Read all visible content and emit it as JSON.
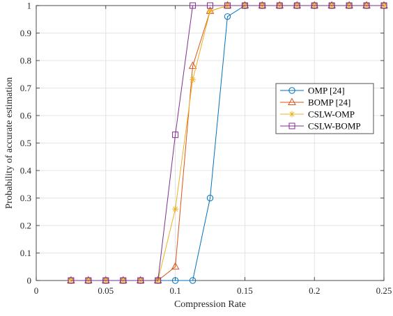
{
  "chart_data": {
    "type": "line",
    "title": "",
    "xlabel": "Compression Rate",
    "ylabel": "Probability of accurate estimation",
    "xlim": [
      0,
      0.25
    ],
    "ylim": [
      0,
      1
    ],
    "xticks": [
      0,
      0.05,
      0.1,
      0.15,
      0.2,
      0.25
    ],
    "xtick_labels": [
      "0",
      "0.05",
      "0.1",
      "0.15",
      "0.2",
      "0.25"
    ],
    "yticks": [
      0,
      0.1,
      0.2,
      0.3,
      0.4,
      0.5,
      0.6,
      0.7,
      0.8,
      0.9,
      1
    ],
    "ytick_labels": [
      "0",
      "0.1",
      "0.2",
      "0.3",
      "0.4",
      "0.5",
      "0.6",
      "0.7",
      "0.8",
      "0.9",
      "1"
    ],
    "grid": true,
    "legend_position": "center-right",
    "x": [
      0.025,
      0.0375,
      0.05,
      0.0625,
      0.075,
      0.0875,
      0.1,
      0.1125,
      0.125,
      0.1375,
      0.15,
      0.1625,
      0.175,
      0.1875,
      0.2,
      0.2125,
      0.225,
      0.2375,
      0.25
    ],
    "series": [
      {
        "name": "OMP [24]",
        "color": "#0072BD",
        "marker": "circle",
        "values": [
          0,
          0,
          0,
          0,
          0,
          0,
          0,
          0,
          0.3,
          0.96,
          1,
          1,
          1,
          1,
          1,
          1,
          1,
          1,
          1
        ]
      },
      {
        "name": "BOMP [24]",
        "color": "#D95319",
        "marker": "triangle",
        "values": [
          0,
          0,
          0,
          0,
          0,
          0,
          0.05,
          0.78,
          0.98,
          1,
          1,
          1,
          1,
          1,
          1,
          1,
          1,
          1,
          1
        ]
      },
      {
        "name": "CSLW-OMP",
        "color": "#EDB120",
        "marker": "asterisk",
        "values": [
          0,
          0,
          0,
          0,
          0,
          0,
          0.26,
          0.73,
          0.98,
          1,
          1,
          1,
          1,
          1,
          1,
          1,
          1,
          1,
          1
        ]
      },
      {
        "name": "CSLW-BOMP",
        "color": "#7E2F8E",
        "marker": "square",
        "values": [
          0,
          0,
          0,
          0,
          0,
          0,
          0.53,
          1,
          1,
          1,
          1,
          1,
          1,
          1,
          1,
          1,
          1,
          1,
          1
        ]
      }
    ]
  }
}
